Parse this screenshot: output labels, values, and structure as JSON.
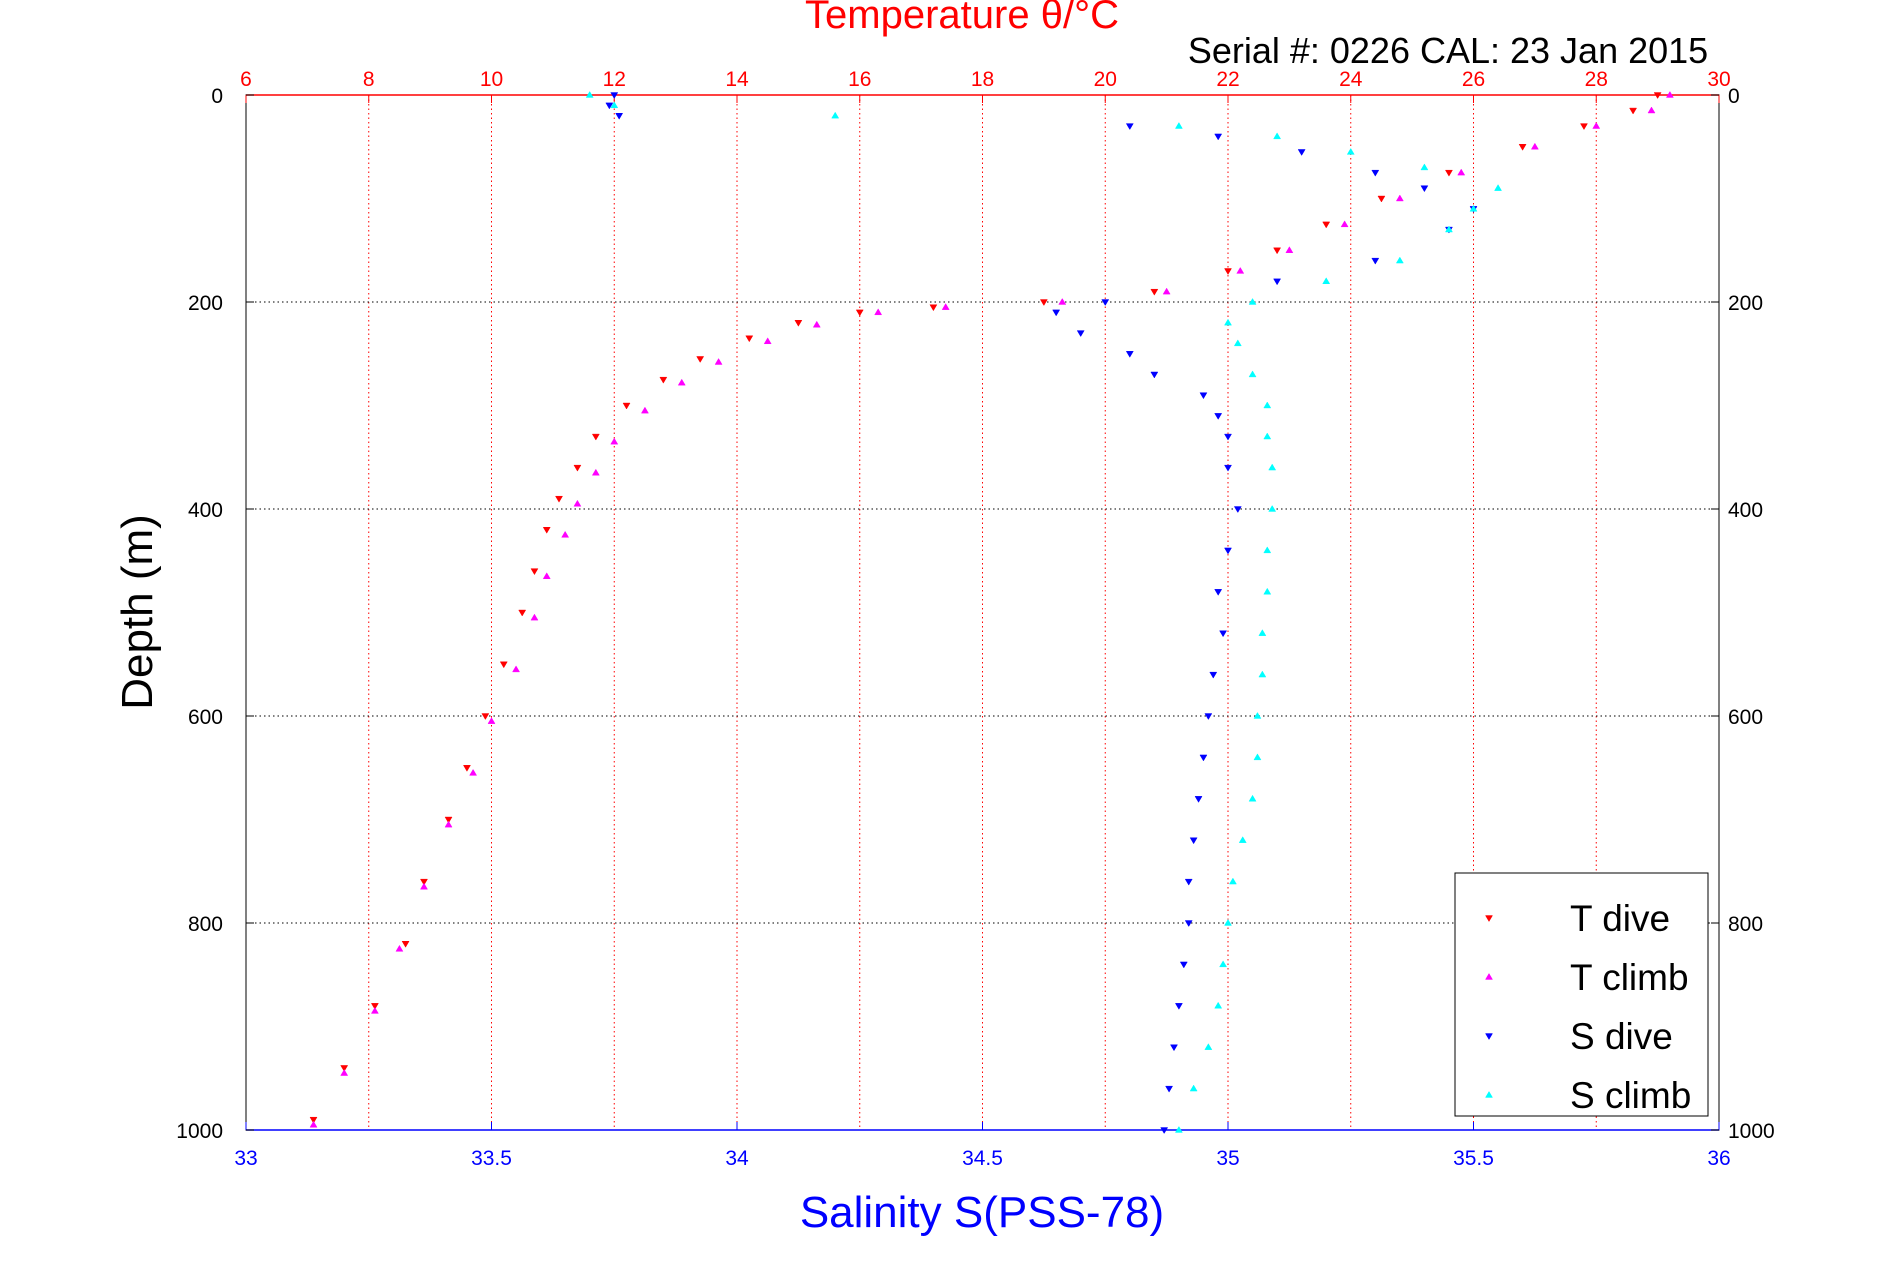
{
  "chart_data": {
    "type": "scatter",
    "title": "Temperature θ/°C",
    "subtitle": "Serial #: 0226  CAL: 23 Jan 2015",
    "xlabel": "Salinity S(PSS-78)",
    "ylabel": "Depth (m)",
    "temperature_axis": {
      "range": [
        6,
        30
      ],
      "ticks": [
        "6",
        "8",
        "10",
        "12",
        "14",
        "16",
        "18",
        "20",
        "22",
        "24",
        "26",
        "28",
        "30"
      ]
    },
    "salinity_axis": {
      "range": [
        33,
        36
      ],
      "ticks": [
        "33",
        "33.5",
        "34",
        "34.5",
        "35",
        "35.5",
        "36"
      ]
    },
    "depth_axis": {
      "range": [
        0,
        1000
      ],
      "reversed": true,
      "ticks": [
        "0",
        "200",
        "400",
        "600",
        "800",
        "1000"
      ]
    },
    "grid": true,
    "legend_position": "bottom-right",
    "series": [
      {
        "name": "T dive",
        "color": "#ff0000",
        "marker": "triangle-down",
        "axis": "temperature",
        "points": [
          [
            29.0,
            0
          ],
          [
            28.6,
            15
          ],
          [
            27.8,
            30
          ],
          [
            26.8,
            50
          ],
          [
            25.6,
            75
          ],
          [
            24.5,
            100
          ],
          [
            23.6,
            125
          ],
          [
            22.8,
            150
          ],
          [
            22.0,
            170
          ],
          [
            20.8,
            190
          ],
          [
            19.0,
            200
          ],
          [
            17.2,
            205
          ],
          [
            16.0,
            210
          ],
          [
            15.0,
            220
          ],
          [
            14.2,
            235
          ],
          [
            13.4,
            255
          ],
          [
            12.8,
            275
          ],
          [
            12.2,
            300
          ],
          [
            11.7,
            330
          ],
          [
            11.4,
            360
          ],
          [
            11.1,
            390
          ],
          [
            10.9,
            420
          ],
          [
            10.7,
            460
          ],
          [
            10.5,
            500
          ],
          [
            10.2,
            550
          ],
          [
            9.9,
            600
          ],
          [
            9.6,
            650
          ],
          [
            9.3,
            700
          ],
          [
            8.9,
            760
          ],
          [
            8.6,
            820
          ],
          [
            8.1,
            880
          ],
          [
            7.6,
            940
          ],
          [
            7.1,
            990
          ]
        ]
      },
      {
        "name": "T climb",
        "color": "#ff00ff",
        "marker": "triangle-up",
        "axis": "temperature",
        "points": [
          [
            29.2,
            0
          ],
          [
            28.9,
            15
          ],
          [
            28.0,
            30
          ],
          [
            27.0,
            50
          ],
          [
            25.8,
            75
          ],
          [
            24.8,
            100
          ],
          [
            23.9,
            125
          ],
          [
            23.0,
            150
          ],
          [
            22.2,
            170
          ],
          [
            21.0,
            190
          ],
          [
            19.3,
            200
          ],
          [
            17.4,
            205
          ],
          [
            16.3,
            210
          ],
          [
            15.3,
            222
          ],
          [
            14.5,
            238
          ],
          [
            13.7,
            258
          ],
          [
            13.1,
            278
          ],
          [
            12.5,
            305
          ],
          [
            12.0,
            335
          ],
          [
            11.7,
            365
          ],
          [
            11.4,
            395
          ],
          [
            11.2,
            425
          ],
          [
            10.9,
            465
          ],
          [
            10.7,
            505
          ],
          [
            10.4,
            555
          ],
          [
            10.0,
            605
          ],
          [
            9.7,
            655
          ],
          [
            9.3,
            705
          ],
          [
            8.9,
            765
          ],
          [
            8.5,
            825
          ],
          [
            8.1,
            885
          ],
          [
            7.6,
            945
          ],
          [
            7.1,
            995
          ]
        ]
      },
      {
        "name": "S dive",
        "color": "#0000ff",
        "marker": "triangle-down",
        "axis": "salinity",
        "points": [
          [
            33.75,
            0
          ],
          [
            33.74,
            10
          ],
          [
            33.76,
            20
          ],
          [
            34.8,
            30
          ],
          [
            34.98,
            40
          ],
          [
            35.15,
            55
          ],
          [
            35.3,
            75
          ],
          [
            35.4,
            90
          ],
          [
            35.5,
            110
          ],
          [
            35.45,
            130
          ],
          [
            35.3,
            160
          ],
          [
            35.1,
            180
          ],
          [
            34.75,
            200
          ],
          [
            34.65,
            210
          ],
          [
            34.7,
            230
          ],
          [
            34.8,
            250
          ],
          [
            34.85,
            270
          ],
          [
            34.95,
            290
          ],
          [
            34.98,
            310
          ],
          [
            35.0,
            330
          ],
          [
            35.0,
            360
          ],
          [
            35.02,
            400
          ],
          [
            35.0,
            440
          ],
          [
            34.98,
            480
          ],
          [
            34.99,
            520
          ],
          [
            34.97,
            560
          ],
          [
            34.96,
            600
          ],
          [
            34.95,
            640
          ],
          [
            34.94,
            680
          ],
          [
            34.93,
            720
          ],
          [
            34.92,
            760
          ],
          [
            34.92,
            800
          ],
          [
            34.91,
            840
          ],
          [
            34.9,
            880
          ],
          [
            34.89,
            920
          ],
          [
            34.88,
            960
          ],
          [
            34.87,
            1000
          ]
        ]
      },
      {
        "name": "S climb",
        "color": "#00ffff",
        "marker": "triangle-up",
        "axis": "salinity",
        "points": [
          [
            33.7,
            0
          ],
          [
            33.75,
            10
          ],
          [
            34.2,
            20
          ],
          [
            34.9,
            30
          ],
          [
            35.1,
            40
          ],
          [
            35.25,
            55
          ],
          [
            35.4,
            70
          ],
          [
            35.55,
            90
          ],
          [
            35.5,
            110
          ],
          [
            35.45,
            130
          ],
          [
            35.35,
            160
          ],
          [
            35.2,
            180
          ],
          [
            35.05,
            200
          ],
          [
            35.0,
            220
          ],
          [
            35.02,
            240
          ],
          [
            35.05,
            270
          ],
          [
            35.08,
            300
          ],
          [
            35.08,
            330
          ],
          [
            35.09,
            360
          ],
          [
            35.09,
            400
          ],
          [
            35.08,
            440
          ],
          [
            35.08,
            480
          ],
          [
            35.07,
            520
          ],
          [
            35.07,
            560
          ],
          [
            35.06,
            600
          ],
          [
            35.06,
            640
          ],
          [
            35.05,
            680
          ],
          [
            35.03,
            720
          ],
          [
            35.01,
            760
          ],
          [
            35.0,
            800
          ],
          [
            34.99,
            840
          ],
          [
            34.98,
            880
          ],
          [
            34.96,
            920
          ],
          [
            34.93,
            960
          ],
          [
            34.9,
            1000
          ]
        ]
      }
    ]
  }
}
